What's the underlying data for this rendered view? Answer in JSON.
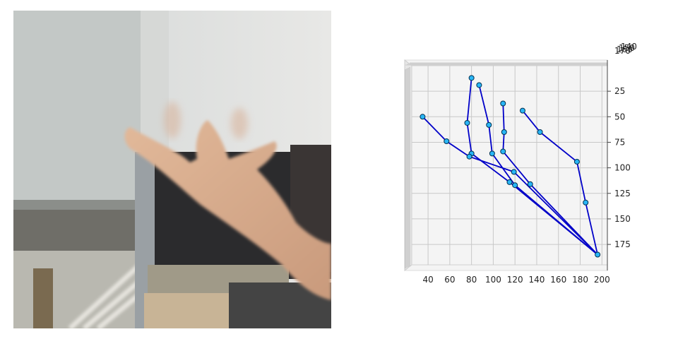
{
  "photo": {
    "subject": "hand-photo"
  },
  "chart_data": {
    "type": "scatter",
    "title": "",
    "xlabel": "",
    "ylabel": "",
    "xlim": [
      25,
      205
    ],
    "ylim": [
      195,
      0
    ],
    "x_ticks": [
      40,
      60,
      80,
      100,
      120,
      140,
      160,
      180,
      200
    ],
    "y_ticks": [
      25,
      50,
      75,
      100,
      125,
      150,
      175
    ],
    "z_tick_labels": [
      "170",
      "160",
      "150",
      "140"
    ],
    "grid": true,
    "colors": {
      "line": "#0000c8",
      "marker_fill": "#29b6f6",
      "marker_edge": "#003050",
      "pane": "#f4f4f4",
      "grid": "#c8c8c8"
    },
    "points": [
      {
        "id": 0,
        "x": 196,
        "y": 185
      },
      {
        "id": 1,
        "x": 185,
        "y": 134
      },
      {
        "id": 2,
        "x": 177,
        "y": 94
      },
      {
        "id": 3,
        "x": 143,
        "y": 65
      },
      {
        "id": 4,
        "x": 127,
        "y": 44
      },
      {
        "id": 5,
        "x": 134,
        "y": 116
      },
      {
        "id": 6,
        "x": 109,
        "y": 84
      },
      {
        "id": 7,
        "x": 110,
        "y": 65
      },
      {
        "id": 8,
        "x": 109,
        "y": 37
      },
      {
        "id": 9,
        "x": 120,
        "y": 117
      },
      {
        "id": 10,
        "x": 99,
        "y": 86
      },
      {
        "id": 11,
        "x": 96,
        "y": 58
      },
      {
        "id": 12,
        "x": 87,
        "y": 19
      },
      {
        "id": 13,
        "x": 115,
        "y": 114
      },
      {
        "id": 14,
        "x": 80,
        "y": 86
      },
      {
        "id": 15,
        "x": 76,
        "y": 56
      },
      {
        "id": 16,
        "x": 80,
        "y": 12
      },
      {
        "id": 17,
        "x": 119,
        "y": 104
      },
      {
        "id": 18,
        "x": 78,
        "y": 89
      },
      {
        "id": 19,
        "x": 57,
        "y": 74
      },
      {
        "id": 20,
        "x": 35,
        "y": 50
      }
    ],
    "connections": [
      [
        0,
        1
      ],
      [
        1,
        2
      ],
      [
        2,
        3
      ],
      [
        3,
        4
      ],
      [
        0,
        5
      ],
      [
        5,
        6
      ],
      [
        6,
        7
      ],
      [
        7,
        8
      ],
      [
        0,
        9
      ],
      [
        9,
        10
      ],
      [
        10,
        11
      ],
      [
        11,
        12
      ],
      [
        0,
        13
      ],
      [
        13,
        14
      ],
      [
        14,
        15
      ],
      [
        15,
        16
      ],
      [
        0,
        17
      ],
      [
        17,
        18
      ],
      [
        18,
        19
      ],
      [
        19,
        20
      ]
    ]
  }
}
